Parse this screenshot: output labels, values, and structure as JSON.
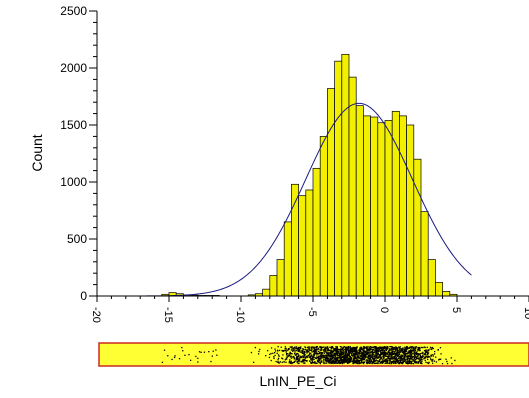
{
  "chart_data": {
    "type": "bar",
    "xlabel": "LnIN_PE_Ci",
    "ylabel": "Count",
    "xlim": [
      -20,
      10
    ],
    "ylim": [
      0,
      2500
    ],
    "x_ticks": [
      -20,
      -15,
      -10,
      -5,
      0,
      5,
      10
    ],
    "y_ticks": [
      0,
      500,
      1000,
      1500,
      2000,
      2500
    ],
    "bin_width": 0.5,
    "bar_color": "#f2f000",
    "curve_color": "#1a1a80",
    "strip_color": "#ffff33",
    "strip_border_color": "#cc2a20",
    "bins": [
      {
        "x": -15.5,
        "y": 15
      },
      {
        "x": -15.0,
        "y": 30
      },
      {
        "x": -14.5,
        "y": 20
      },
      {
        "x": -14.0,
        "y": 10
      },
      {
        "x": -13.5,
        "y": 8
      },
      {
        "x": -13.0,
        "y": 5
      },
      {
        "x": -12.5,
        "y": 5
      },
      {
        "x": -12.0,
        "y": 5
      },
      {
        "x": -9.5,
        "y": 10
      },
      {
        "x": -9.0,
        "y": 20
      },
      {
        "x": -8.5,
        "y": 60
      },
      {
        "x": -8.0,
        "y": 180
      },
      {
        "x": -7.5,
        "y": 320
      },
      {
        "x": -7.0,
        "y": 650
      },
      {
        "x": -6.5,
        "y": 980
      },
      {
        "x": -6.0,
        "y": 880
      },
      {
        "x": -5.5,
        "y": 930
      },
      {
        "x": -5.0,
        "y": 1120
      },
      {
        "x": -4.5,
        "y": 1400
      },
      {
        "x": -4.0,
        "y": 1820
      },
      {
        "x": -3.5,
        "y": 2060
      },
      {
        "x": -3.0,
        "y": 2120
      },
      {
        "x": -2.5,
        "y": 1920
      },
      {
        "x": -2.0,
        "y": 1670
      },
      {
        "x": -1.5,
        "y": 1580
      },
      {
        "x": -1.0,
        "y": 1570
      },
      {
        "x": -0.5,
        "y": 1520
      },
      {
        "x": 0.0,
        "y": 1540
      },
      {
        "x": 0.5,
        "y": 1620
      },
      {
        "x": 1.0,
        "y": 1580
      },
      {
        "x": 1.5,
        "y": 1500
      },
      {
        "x": 2.0,
        "y": 1200
      },
      {
        "x": 2.5,
        "y": 740
      },
      {
        "x": 3.0,
        "y": 320
      },
      {
        "x": 3.5,
        "y": 120
      },
      {
        "x": 4.0,
        "y": 40
      },
      {
        "x": 4.5,
        "y": 15
      }
    ],
    "fit_curve": {
      "type": "gaussian",
      "mean": -1.8,
      "sd": 3.7,
      "peak": 1690,
      "x_range": [
        -19,
        6
      ]
    }
  }
}
